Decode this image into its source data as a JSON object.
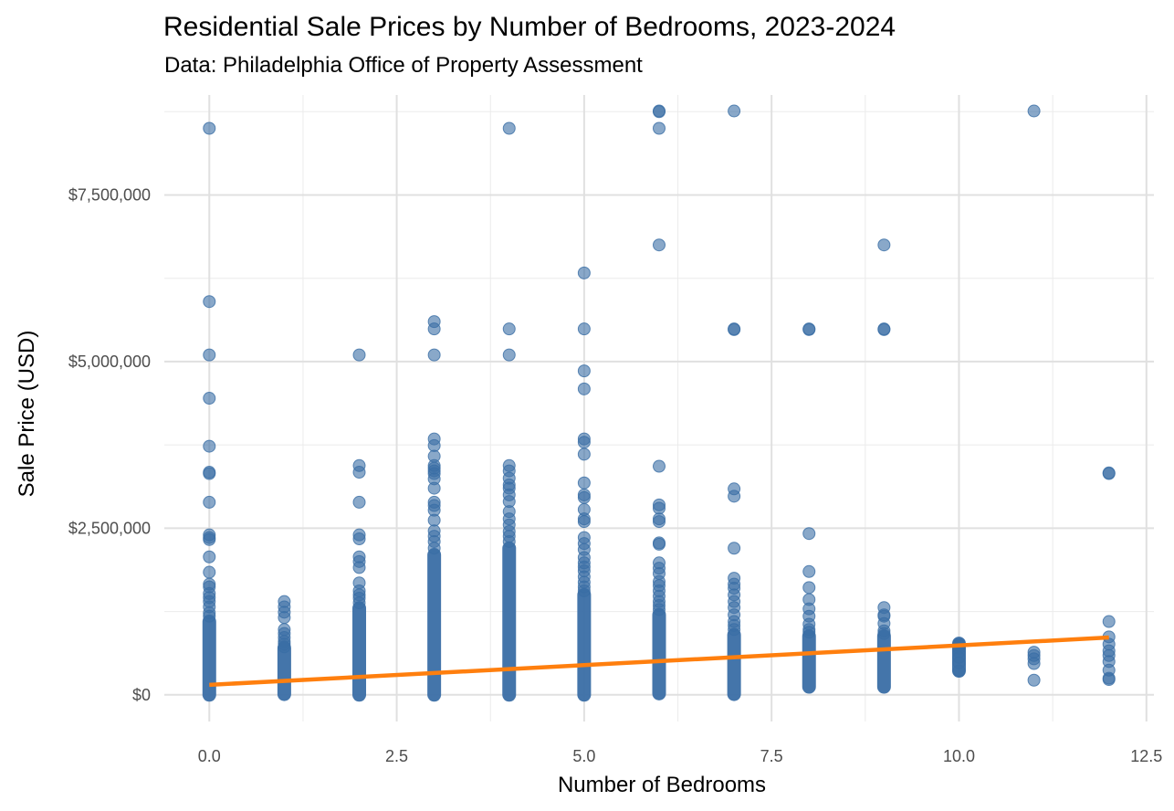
{
  "chart_data": {
    "type": "scatter",
    "title": "Residential Sale Prices by Number of Bedrooms, 2023-2024",
    "subtitle": "Data: Philadelphia Office of Property Assessment",
    "xlabel": "Number of Bedrooms",
    "ylabel": "Sale Price (USD)",
    "xlim": [
      -0.6,
      12.6
    ],
    "ylim": [
      -400000,
      9000000
    ],
    "x_ticks": [
      0,
      2.5,
      5,
      7.5,
      10,
      12.5
    ],
    "x_tick_labels": [
      "0.0",
      "2.5",
      "5.0",
      "7.5",
      "10.0",
      "12.5"
    ],
    "y_ticks": [
      0,
      2500000,
      5000000,
      7500000
    ],
    "y_tick_labels": [
      "$0",
      "$2,500,000",
      "$5,000,000",
      "$7,500,000"
    ],
    "grid": true,
    "legend": "none",
    "point_color": "#3a6ea5",
    "line_color": "#ff7f0e",
    "trend_line": {
      "x": [
        0,
        12
      ],
      "y": [
        150000,
        860000
      ]
    },
    "bedroom_columns": [
      {
        "x": 0,
        "dense_min": 0,
        "dense_max": 1100000,
        "points": [
          8500000,
          5900000,
          5100000,
          4450000,
          3730000,
          3340000,
          3320000,
          2890000,
          2400000,
          2360000,
          2330000,
          2070000,
          1840000,
          1660000,
          1620000,
          1520000,
          1460000,
          1400000,
          1320000,
          1230000,
          1180000
        ]
      },
      {
        "x": 1,
        "dense_min": 10000,
        "dense_max": 700000,
        "points": [
          1400000,
          1320000,
          1240000,
          1160000,
          980000,
          920000,
          860000,
          800000,
          760000,
          720000
        ]
      },
      {
        "x": 2,
        "dense_min": 0,
        "dense_max": 1300000,
        "points": [
          5100000,
          3440000,
          3340000,
          2890000,
          2400000,
          2340000,
          2070000,
          2000000,
          1910000,
          1680000,
          1560000,
          1500000,
          1450000,
          1380000
        ]
      },
      {
        "x": 3,
        "dense_min": 0,
        "dense_max": 2100000,
        "points": [
          5600000,
          5490000,
          5100000,
          3840000,
          3740000,
          3580000,
          3440000,
          3400000,
          3360000,
          3320000,
          3240000,
          3100000,
          2890000,
          2840000,
          2770000,
          2620000,
          2460000,
          2380000,
          2300000,
          2200000
        ]
      },
      {
        "x": 4,
        "dense_min": 0,
        "dense_max": 2200000,
        "points": [
          8500000,
          5490000,
          5100000,
          3440000,
          3360000,
          3250000,
          3150000,
          3100000,
          3000000,
          2900000,
          2750000,
          2640000,
          2550000,
          2450000,
          2380000,
          2300000
        ]
      },
      {
        "x": 5,
        "dense_min": 0,
        "dense_max": 1500000,
        "points": [
          6330000,
          5490000,
          4860000,
          4590000,
          3840000,
          3790000,
          3610000,
          3180000,
          3000000,
          2960000,
          2780000,
          2640000,
          2600000,
          2360000,
          2270000,
          2180000,
          2060000,
          1980000,
          1920000,
          1860000,
          1770000,
          1690000,
          1620000,
          1560000
        ]
      },
      {
        "x": 6,
        "dense_min": 20000,
        "dense_max": 1200000,
        "points": [
          8760000,
          8750000,
          8500000,
          6750000,
          3430000,
          2850000,
          2800000,
          2640000,
          2600000,
          2280000,
          2260000,
          1980000,
          1900000,
          1820000,
          1700000,
          1640000,
          1560000,
          1480000,
          1400000,
          1340000,
          1280000
        ]
      },
      {
        "x": 7,
        "dense_min": 10000,
        "dense_max": 900000,
        "points": [
          8760000,
          5490000,
          5480000,
          3090000,
          2980000,
          2200000,
          1750000,
          1660000,
          1600000,
          1500000,
          1400000,
          1310000,
          1200000,
          1100000,
          1040000,
          980000
        ]
      },
      {
        "x": 8,
        "dense_min": 120000,
        "dense_max": 880000,
        "points": [
          5490000,
          5480000,
          2420000,
          1850000,
          1610000,
          1430000,
          1290000,
          1180000,
          1060000,
          980000,
          940000
        ]
      },
      {
        "x": 9,
        "dense_min": 120000,
        "dense_max": 880000,
        "points": [
          6750000,
          5490000,
          5480000,
          1310000,
          1200000,
          1180000,
          1070000,
          960000,
          920000
        ]
      },
      {
        "x": 10,
        "dense_min": 360000,
        "dense_max": 770000,
        "points": [
          760000,
          740000,
          700000,
          640000,
          560000,
          480000,
          360000
        ]
      },
      {
        "x": 11,
        "dense_min": 220000,
        "dense_max": 220000,
        "points": [
          8760000,
          640000,
          590000,
          540000,
          470000,
          220000
        ]
      },
      {
        "x": 12,
        "dense_min": 230000,
        "dense_max": 230000,
        "points": [
          3330000,
          3320000,
          1100000,
          870000,
          760000,
          660000,
          590000,
          500000,
          370000,
          250000,
          230000
        ]
      }
    ]
  }
}
